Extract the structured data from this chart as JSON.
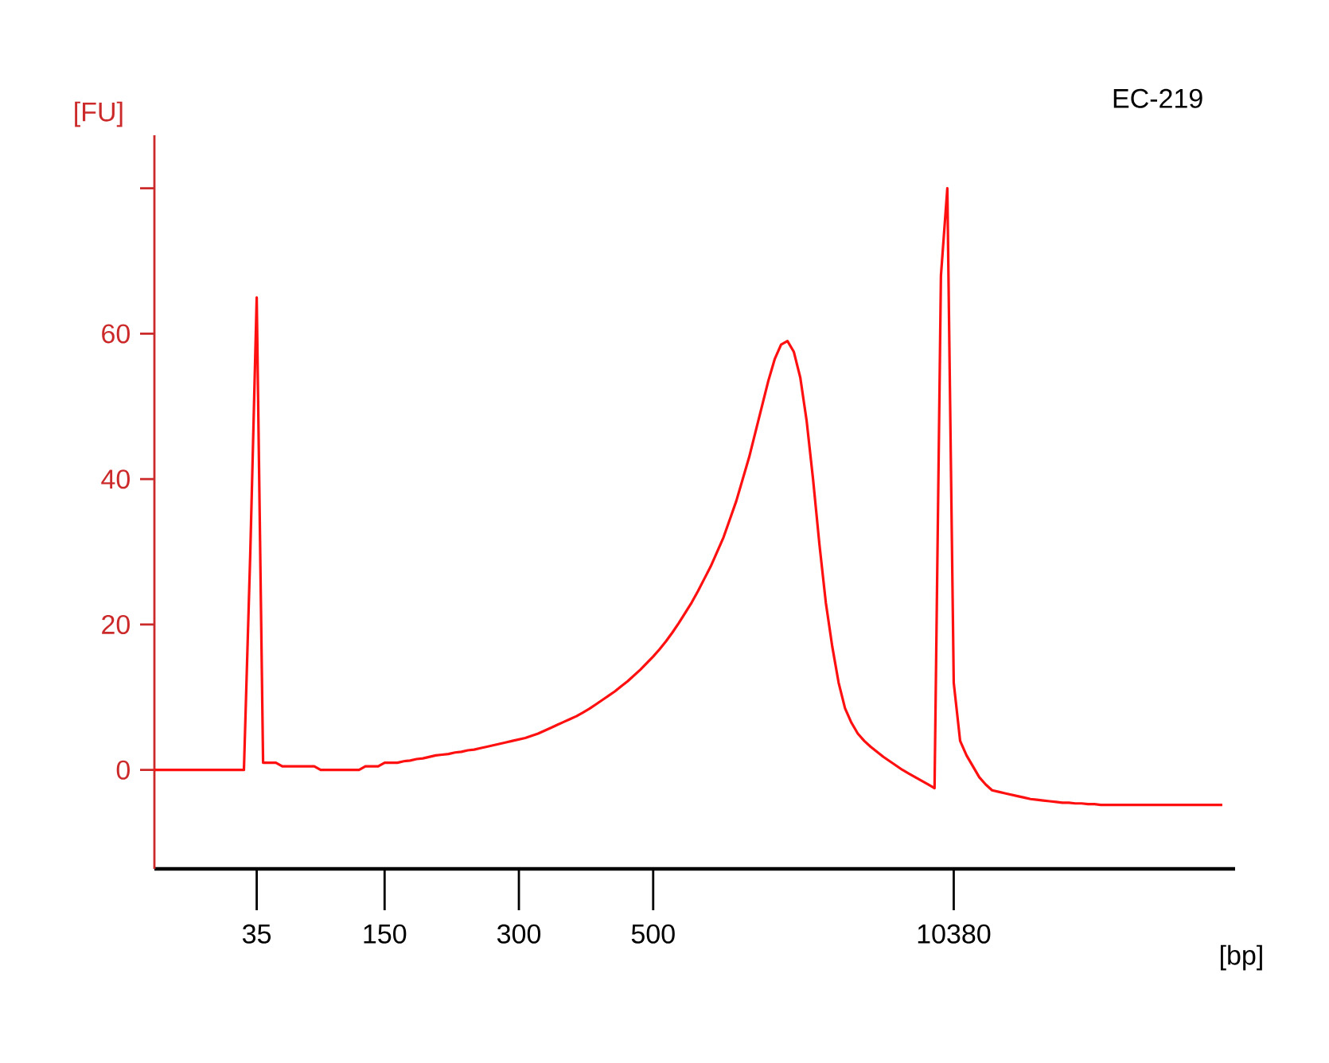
{
  "chart_data": {
    "type": "line",
    "title": "EC-219",
    "xlabel": "[bp]",
    "ylabel": "[FU]",
    "ylim": [
      -13.6,
      87.3
    ],
    "yticks": [
      0,
      20,
      40,
      60,
      {
        "value": 80,
        "label": null
      }
    ],
    "marker": "none",
    "line_style": "solid",
    "categories": [
      null,
      null,
      null,
      null,
      null,
      null,
      null,
      null,
      null,
      null,
      null,
      null,
      null,
      null,
      null,
      null,
      "35",
      null,
      null,
      null,
      null,
      null,
      null,
      null,
      null,
      null,
      null,
      null,
      null,
      null,
      null,
      null,
      null,
      null,
      null,
      null,
      "150",
      null,
      null,
      null,
      null,
      null,
      null,
      null,
      null,
      null,
      null,
      null,
      null,
      null,
      null,
      null,
      null,
      null,
      null,
      null,
      null,
      "300",
      null,
      null,
      null,
      null,
      null,
      null,
      null,
      null,
      null,
      null,
      null,
      null,
      null,
      null,
      null,
      null,
      null,
      null,
      null,
      null,
      "500",
      null,
      null,
      null,
      null,
      null,
      null,
      null,
      null,
      null,
      null,
      null,
      null,
      null,
      null,
      null,
      null,
      null,
      null,
      null,
      null,
      null,
      null,
      null,
      null,
      null,
      null,
      null,
      null,
      null,
      null,
      null,
      null,
      null,
      null,
      null,
      null,
      null,
      null,
      null,
      null,
      null,
      null,
      null,
      null,
      null,
      null,
      "10380",
      null,
      null,
      null,
      null,
      null,
      null,
      null,
      null,
      null,
      null,
      null,
      null,
      null,
      null,
      null,
      null,
      null,
      null,
      null,
      null,
      null,
      null,
      null,
      null,
      null,
      null,
      null,
      null,
      null,
      null,
      null,
      null,
      null,
      null,
      null,
      null,
      null,
      null,
      null,
      null,
      null,
      null,
      null,
      null
    ],
    "series": [
      {
        "color": "#ff1010",
        "values": [
          0,
          0,
          0,
          0,
          0,
          0,
          0,
          0,
          0,
          0,
          0,
          0,
          0,
          0,
          0,
          30,
          65,
          1,
          1,
          1,
          0.5,
          0.5,
          0.5,
          0.5,
          0.5,
          0.5,
          0,
          0,
          0,
          0,
          0,
          0,
          0,
          0.5,
          0.5,
          0.5,
          1,
          1,
          1,
          1.2,
          1.3,
          1.5,
          1.6,
          1.8,
          2,
          2.1,
          2.2,
          2.4,
          2.5,
          2.7,
          2.8,
          3,
          3.2,
          3.4,
          3.6,
          3.8,
          4,
          4.2,
          4.4,
          4.7,
          5,
          5.4,
          5.8,
          6.2,
          6.6,
          7,
          7.4,
          7.9,
          8.4,
          9,
          9.6,
          10.2,
          10.8,
          11.5,
          12.2,
          13,
          13.8,
          14.7,
          15.6,
          16.6,
          17.7,
          18.9,
          20.2,
          21.6,
          23,
          24.6,
          26.3,
          28,
          30,
          32,
          34.5,
          37,
          40,
          43,
          46.5,
          50,
          53.5,
          56.5,
          58.5,
          59,
          57.5,
          54,
          48,
          40,
          31,
          23,
          17,
          12,
          8.5,
          6.5,
          5,
          4,
          3.2,
          2.5,
          1.8,
          1.2,
          0.6,
          0,
          -0.5,
          -1,
          -1.5,
          -2,
          -2.5,
          68,
          80,
          12,
          4,
          2,
          0.5,
          -1,
          -2,
          -2.8,
          -3,
          -3.2,
          -3.4,
          -3.6,
          -3.8,
          -4,
          -4.1,
          -4.2,
          -4.3,
          -4.4,
          -4.5,
          -4.5,
          -4.6,
          -4.6,
          -4.7,
          -4.7,
          -4.8,
          -4.8,
          -4.8,
          -4.8,
          -4.8,
          -4.8,
          -4.8,
          -4.8,
          -4.8,
          -4.8,
          -4.8,
          -4.8,
          -4.8,
          -4.8,
          -4.8,
          -4.8,
          -4.8,
          -4.8,
          -4.8,
          -4.8,
          null,
          null
        ]
      }
    ]
  }
}
